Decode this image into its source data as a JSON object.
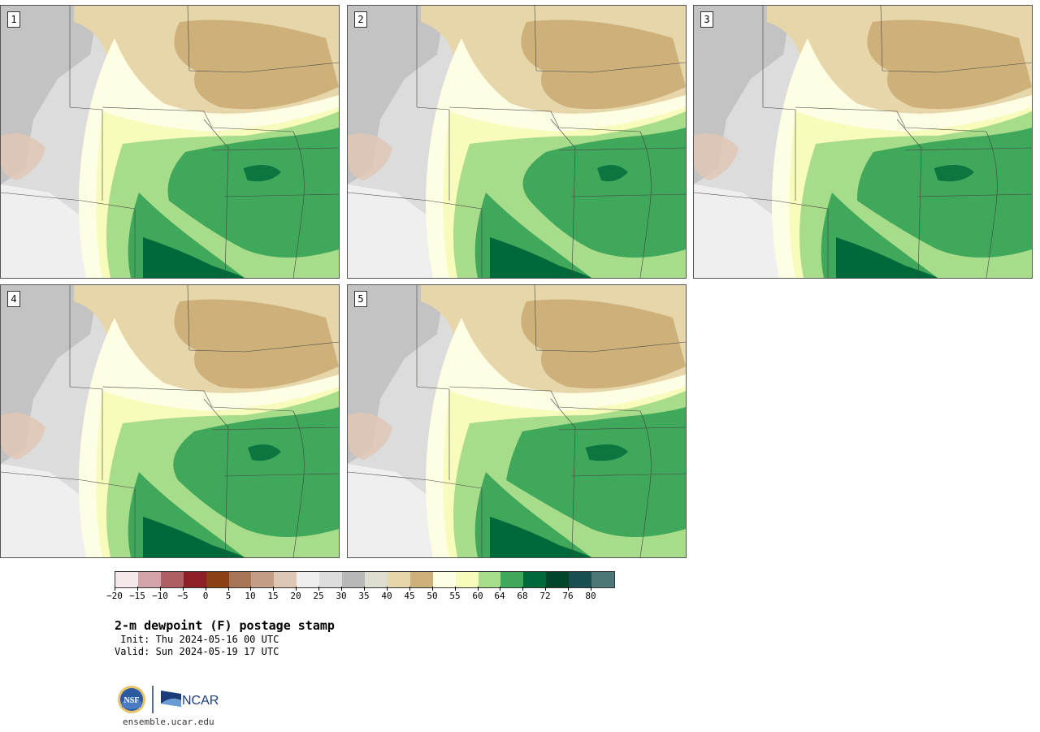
{
  "panels": [
    {
      "label": "1"
    },
    {
      "label": "2"
    },
    {
      "label": "3"
    },
    {
      "label": "4"
    },
    {
      "label": "5"
    }
  ],
  "colorbar": {
    "colors": [
      "#f4e8ea",
      "#d4a4ab",
      "#ad5f64",
      "#8e1f27",
      "#8c4114",
      "#a87556",
      "#c39e87",
      "#dfc7b5",
      "#efeff0",
      "#dcdcdc",
      "#b8b8b8",
      "#ddddd0",
      "#e6d6aa",
      "#cdb07a",
      "#fefee4",
      "#f7fbbb",
      "#a7dc8b",
      "#40a85a",
      "#00693a",
      "#00442a",
      "#194e52",
      "#4d7676"
    ],
    "tick_labels": [
      "−20",
      "−15",
      "−10",
      "−5",
      "0",
      "5",
      "10",
      "15",
      "20",
      "25",
      "30",
      "35",
      "40",
      "45",
      "50",
      "55",
      "60",
      "64",
      "68",
      "72",
      "76",
      "80"
    ]
  },
  "title": "2-m dewpoint (F) postage stamp",
  "init": " Init: Thu 2024-05-16 00 UTC",
  "valid": "Valid: Sun 2024-05-19 17 UTC",
  "logos": {
    "nsf": "NSF",
    "ncar": "NCAR"
  },
  "site": "ensemble.ucar.edu"
}
